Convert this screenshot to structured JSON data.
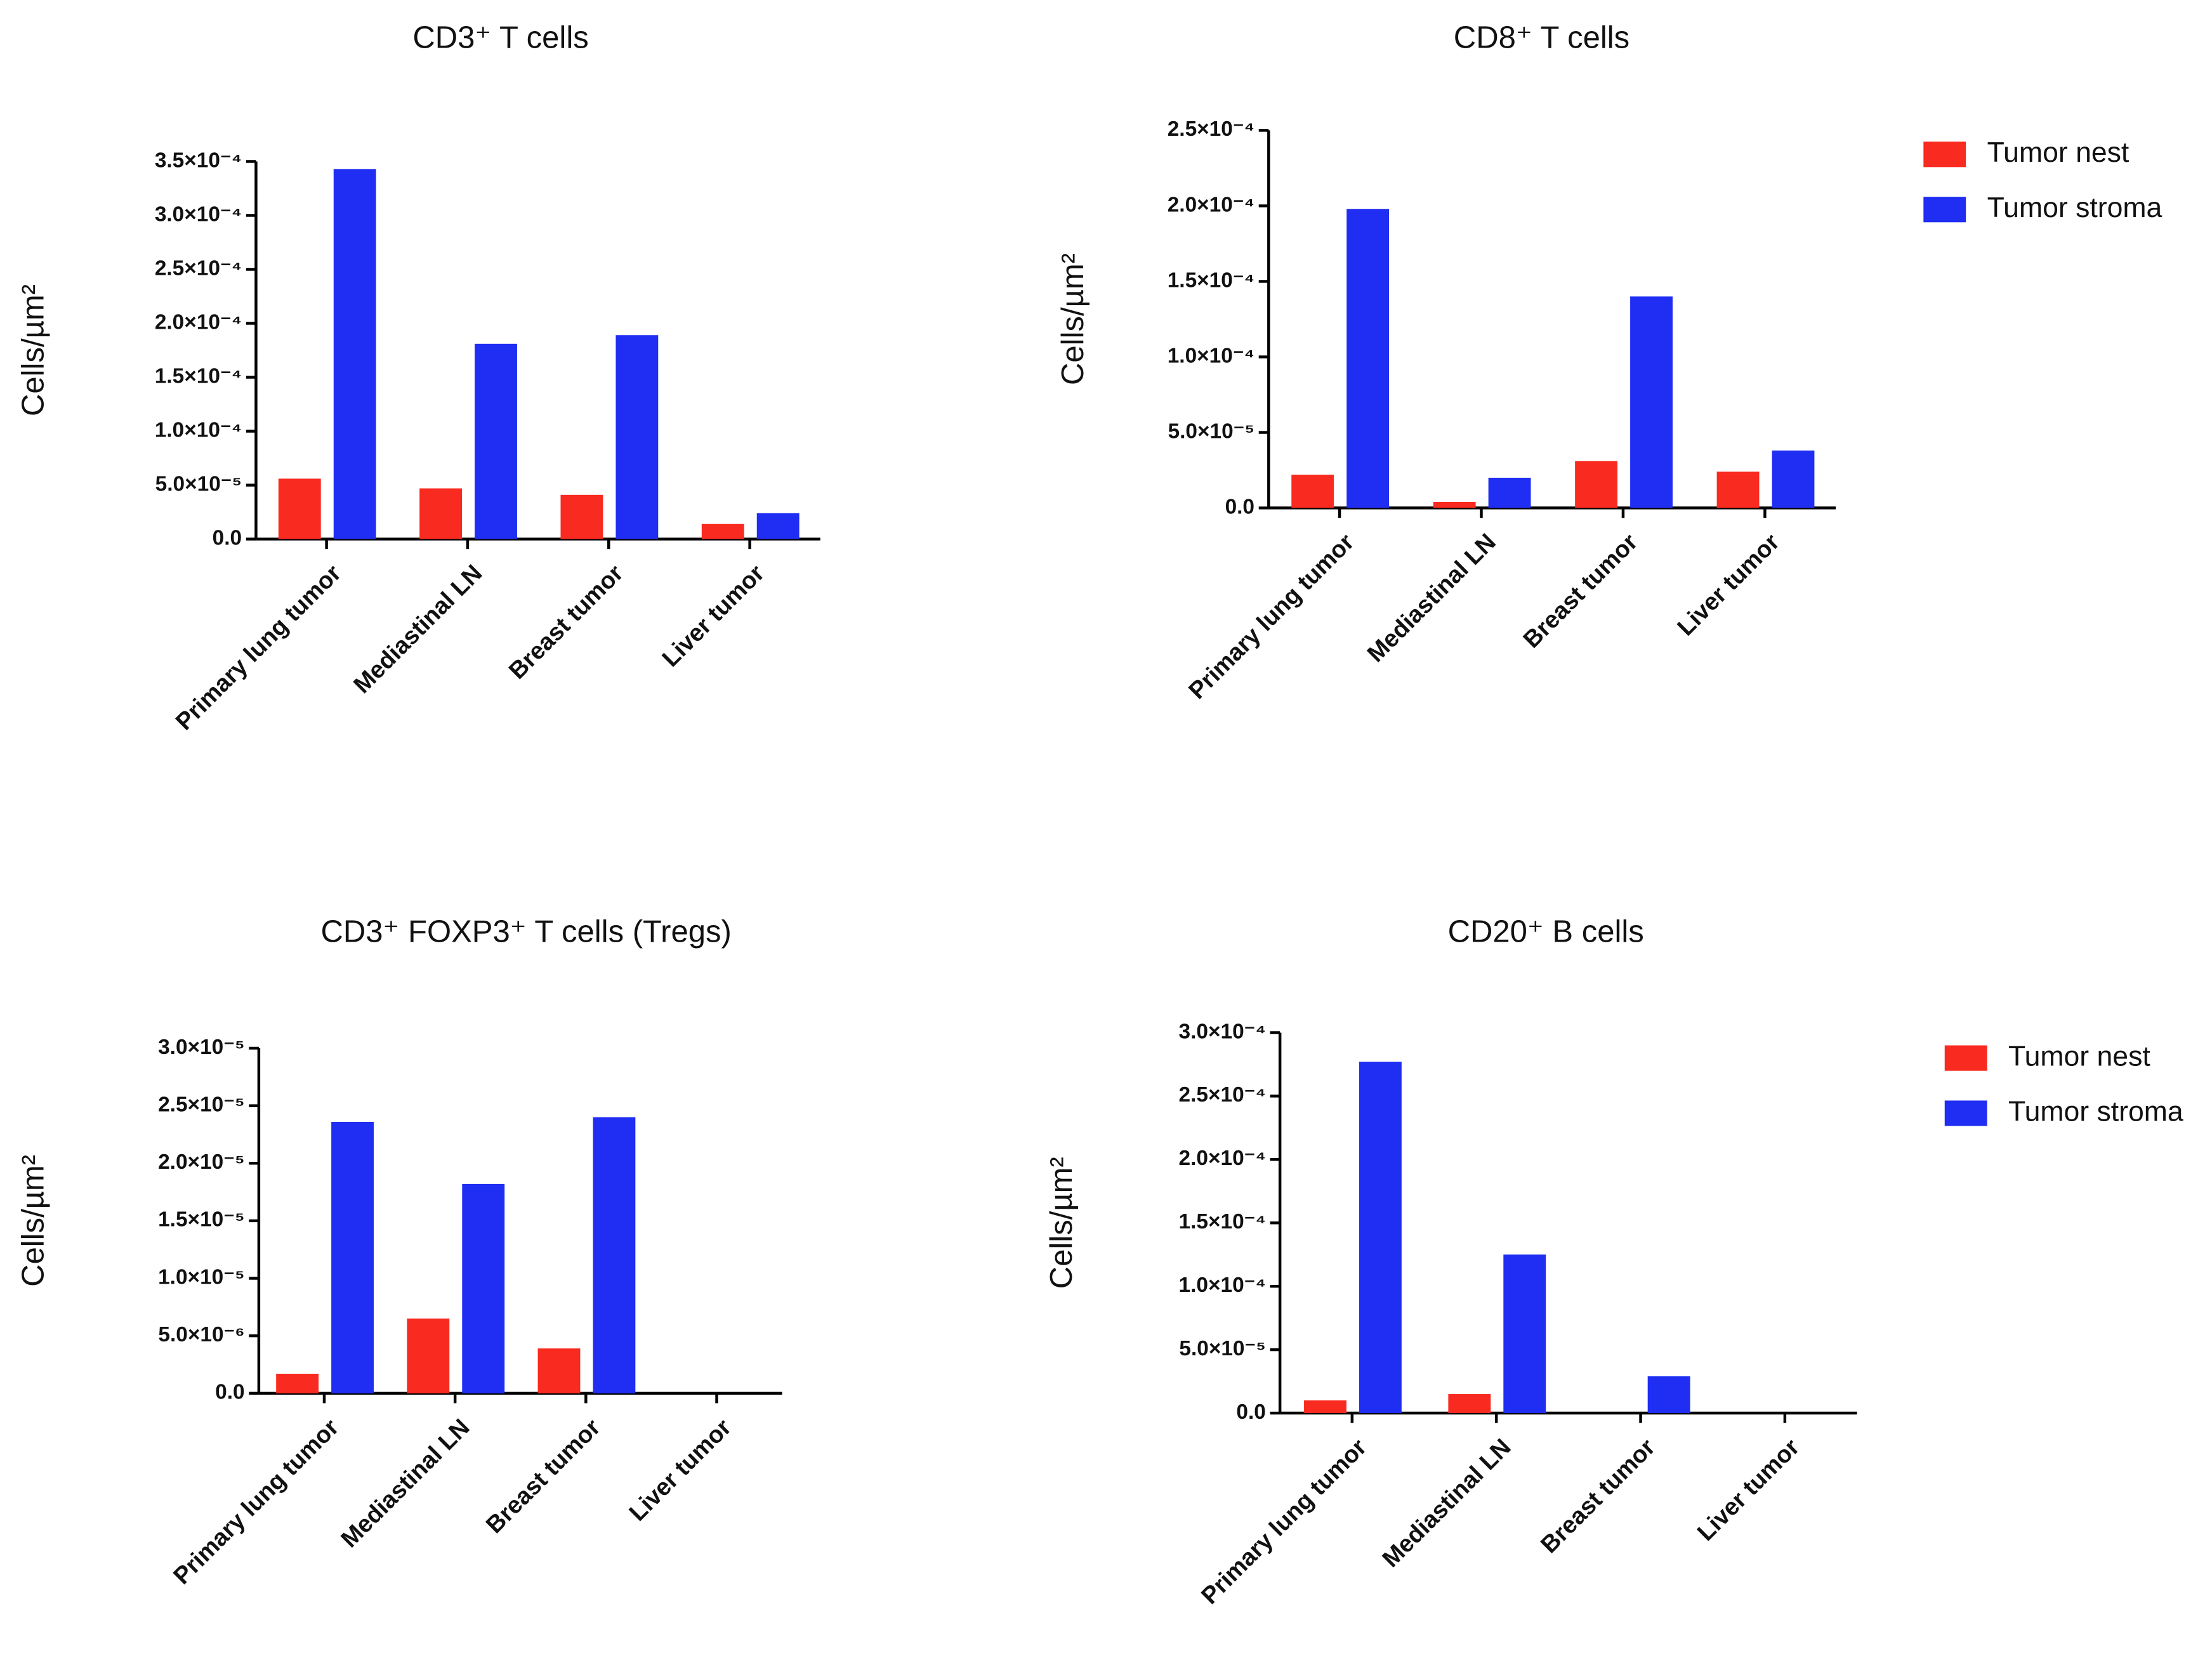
{
  "chart_data": [
    {
      "type": "bar",
      "title": "CD3⁺ T cells",
      "y_label": "Cells/µm²",
      "categories": [
        "Primary lung tumor",
        "Mediastinal LN",
        "Breast tumor",
        "Liver tumor"
      ],
      "series": [
        {
          "name": "Tumor nest",
          "color": "#f92a1f",
          "values": [
            5.6e-05,
            4.7e-05,
            4.1e-05,
            1.4e-05
          ]
        },
        {
          "name": "Tumor stroma",
          "color": "#1f2ef2",
          "values": [
            0.000343,
            0.000181,
            0.000189,
            2.4e-05
          ]
        }
      ],
      "ylim": [
        0,
        0.00035
      ],
      "yticks": [
        {
          "value": 0,
          "label": "0.0"
        },
        {
          "value": 5e-05,
          "label": "5.0×10⁻⁵"
        },
        {
          "value": 0.0001,
          "label": "1.0×10⁻⁴"
        },
        {
          "value": 0.00015,
          "label": "1.5×10⁻⁴"
        },
        {
          "value": 0.0002,
          "label": "2.0×10⁻⁴"
        },
        {
          "value": 0.00025,
          "label": "2.5×10⁻⁴"
        },
        {
          "value": 0.0003,
          "label": "3.0×10⁻⁴"
        },
        {
          "value": 0.00035,
          "label": "3.5×10⁻⁴"
        }
      ]
    },
    {
      "type": "bar",
      "title": "CD8⁺ T cells",
      "y_label": "Cells/µm²",
      "legend": "upper right",
      "categories": [
        "Primary lung tumor",
        "Mediastinal LN",
        "Breast tumor",
        "Liver tumor"
      ],
      "series": [
        {
          "name": "Tumor nest",
          "color": "#f92a1f",
          "values": [
            2.2e-05,
            4e-06,
            3.1e-05,
            2.4e-05
          ]
        },
        {
          "name": "Tumor stroma",
          "color": "#1f2ef2",
          "values": [
            0.000198,
            2e-05,
            0.00014,
            3.8e-05
          ]
        }
      ],
      "ylim": [
        0,
        0.00025
      ],
      "yticks": [
        {
          "value": 0,
          "label": "0.0"
        },
        {
          "value": 5e-05,
          "label": "5.0×10⁻⁵"
        },
        {
          "value": 0.0001,
          "label": "1.0×10⁻⁴"
        },
        {
          "value": 0.00015,
          "label": "1.5×10⁻⁴"
        },
        {
          "value": 0.0002,
          "label": "2.0×10⁻⁴"
        },
        {
          "value": 0.00025,
          "label": "2.5×10⁻⁴"
        }
      ]
    },
    {
      "type": "bar",
      "title": "CD3⁺ FOXP3⁺ T cells (Tregs)",
      "y_label": "Cells/µm²",
      "categories": [
        "Primary lung tumor",
        "Mediastinal LN",
        "Breast tumor",
        "Liver tumor"
      ],
      "series": [
        {
          "name": "Tumor nest",
          "color": "#f92a1f",
          "values": [
            1.7e-06,
            6.5e-06,
            3.9e-06,
            0
          ]
        },
        {
          "name": "Tumor stroma",
          "color": "#1f2ef2",
          "values": [
            2.36e-05,
            1.82e-05,
            2.4e-05,
            0
          ]
        }
      ],
      "ylim": [
        0,
        3e-05
      ],
      "yticks": [
        {
          "value": 0,
          "label": "0.0"
        },
        {
          "value": 5e-06,
          "label": "5.0×10⁻⁶"
        },
        {
          "value": 1e-05,
          "label": "1.0×10⁻⁵"
        },
        {
          "value": 1.5e-05,
          "label": "1.5×10⁻⁵"
        },
        {
          "value": 2e-05,
          "label": "2.0×10⁻⁵"
        },
        {
          "value": 2.5e-05,
          "label": "2.5×10⁻⁵"
        },
        {
          "value": 3e-05,
          "label": "3.0×10⁻⁵"
        }
      ]
    },
    {
      "type": "bar",
      "title": "CD20⁺ B cells",
      "y_label": "Cells/µm²",
      "legend": "upper right",
      "categories": [
        "Primary lung tumor",
        "Mediastinal LN",
        "Breast tumor",
        "Liver tumor"
      ],
      "series": [
        {
          "name": "Tumor nest",
          "color": "#f92a1f",
          "values": [
            1e-05,
            1.5e-05,
            0,
            0
          ]
        },
        {
          "name": "Tumor stroma",
          "color": "#1f2ef2",
          "values": [
            0.000277,
            0.000125,
            2.9e-05,
            0
          ]
        }
      ],
      "ylim": [
        0,
        0.0003
      ],
      "yticks": [
        {
          "value": 0,
          "label": "0.0"
        },
        {
          "value": 5e-05,
          "label": "5.0×10⁻⁵"
        },
        {
          "value": 0.0001,
          "label": "1.0×10⁻⁴"
        },
        {
          "value": 0.00015,
          "label": "1.5×10⁻⁴"
        },
        {
          "value": 0.0002,
          "label": "2.0×10⁻⁴"
        },
        {
          "value": 0.00025,
          "label": "2.5×10⁻⁴"
        },
        {
          "value": 0.0003,
          "label": "3.0×10⁻⁴"
        }
      ]
    }
  ]
}
